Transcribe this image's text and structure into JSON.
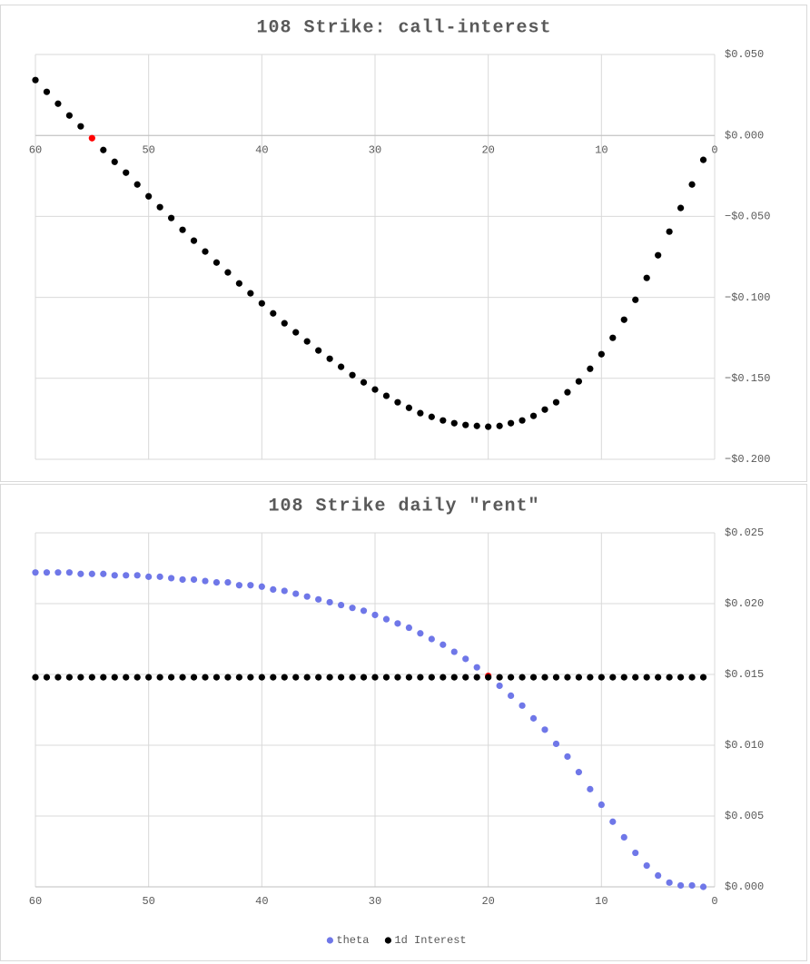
{
  "chart_data": [
    {
      "type": "scatter",
      "title": "108 Strike: call-interest",
      "x": [
        60,
        59,
        58,
        57,
        56,
        55,
        54,
        53,
        52,
        51,
        50,
        49,
        48,
        47,
        46,
        45,
        44,
        43,
        42,
        41,
        40,
        39,
        38,
        37,
        36,
        35,
        34,
        33,
        32,
        31,
        30,
        29,
        28,
        27,
        26,
        25,
        24,
        23,
        22,
        21,
        20,
        19,
        18,
        17,
        16,
        15,
        14,
        13,
        12,
        11,
        10,
        9,
        8,
        7,
        6,
        5,
        4,
        3,
        2,
        1
      ],
      "series": [
        {
          "color": "#000000",
          "highlight": {
            "index": 5,
            "color": "#ff0000"
          },
          "values": [
            0.0342,
            0.0269,
            0.0196,
            0.0123,
            0.0056,
            -0.0017,
            -0.009,
            -0.0163,
            -0.023,
            -0.0303,
            -0.0376,
            -0.0443,
            -0.051,
            -0.0583,
            -0.065,
            -0.0717,
            -0.0785,
            -0.0846,
            -0.0914,
            -0.0975,
            -0.1037,
            -0.1099,
            -0.116,
            -0.1216,
            -0.1272,
            -0.1328,
            -0.1379,
            -0.1429,
            -0.148,
            -0.1525,
            -0.1569,
            -0.1608,
            -0.1648,
            -0.1682,
            -0.1715,
            -0.1738,
            -0.176,
            -0.1777,
            -0.1788,
            -0.1794,
            -0.1799,
            -0.1794,
            -0.1777,
            -0.176,
            -0.1732,
            -0.1693,
            -0.1648,
            -0.1586,
            -0.1519,
            -0.1441,
            -0.1351,
            -0.125,
            -0.1138,
            -0.1015,
            -0.088,
            -0.074,
            -0.0594,
            -0.0448,
            -0.0303,
            -0.0151
          ]
        }
      ],
      "xlim": [
        60,
        0
      ],
      "xticks": [
        60,
        50,
        40,
        30,
        20,
        10,
        0
      ],
      "ylim": [
        -0.2,
        0.05
      ],
      "yticks": [
        {
          "value": 0.05,
          "label": "$0.050"
        },
        {
          "value": 0,
          "label": "$0.000"
        },
        {
          "value": -0.05,
          "label": "−$0.050"
        },
        {
          "value": -0.1,
          "label": "−$0.100"
        },
        {
          "value": -0.15,
          "label": "−$0.150"
        },
        {
          "value": -0.2,
          "label": "−$0.200"
        }
      ],
      "grid": true
    },
    {
      "type": "scatter",
      "title": "108 Strike daily \"rent\"",
      "x": [
        60,
        59,
        58,
        57,
        56,
        55,
        54,
        53,
        52,
        51,
        50,
        49,
        48,
        47,
        46,
        45,
        44,
        43,
        42,
        41,
        40,
        39,
        38,
        37,
        36,
        35,
        34,
        33,
        32,
        31,
        30,
        29,
        28,
        27,
        26,
        25,
        24,
        23,
        22,
        21,
        20,
        19,
        18,
        17,
        16,
        15,
        14,
        13,
        12,
        11,
        10,
        9,
        8,
        7,
        6,
        5,
        4,
        3,
        2,
        1
      ],
      "series": [
        {
          "name": "theta",
          "color": "#6f77e8",
          "highlight": {
            "index": 40,
            "color": "#ff0000"
          },
          "values": [
            0.0222,
            0.0222,
            0.0222,
            0.0222,
            0.0221,
            0.0221,
            0.0221,
            0.022,
            0.022,
            0.022,
            0.0219,
            0.0219,
            0.0218,
            0.0217,
            0.0217,
            0.0216,
            0.0215,
            0.0215,
            0.0213,
            0.0213,
            0.0212,
            0.021,
            0.0209,
            0.0207,
            0.0205,
            0.0203,
            0.0201,
            0.0199,
            0.0197,
            0.0195,
            0.0192,
            0.0189,
            0.0186,
            0.0183,
            0.0179,
            0.0175,
            0.0171,
            0.0166,
            0.0161,
            0.0155,
            0.0149,
            0.0142,
            0.0135,
            0.0128,
            0.0119,
            0.0111,
            0.0101,
            0.0092,
            0.0081,
            0.0069,
            0.0058,
            0.0046,
            0.0035,
            0.0024,
            0.0015,
            0.0008,
            0.0003,
            0.0001,
            0.0001,
            0.0
          ]
        },
        {
          "name": "1d Interest",
          "color": "#000000",
          "values": [
            0.0148,
            0.0148,
            0.0148,
            0.0148,
            0.0148,
            0.0148,
            0.0148,
            0.0148,
            0.0148,
            0.0148,
            0.0148,
            0.0148,
            0.0148,
            0.0148,
            0.0148,
            0.0148,
            0.0148,
            0.0148,
            0.0148,
            0.0148,
            0.0148,
            0.0148,
            0.0148,
            0.0148,
            0.0148,
            0.0148,
            0.0148,
            0.0148,
            0.0148,
            0.0148,
            0.0148,
            0.0148,
            0.0148,
            0.0148,
            0.0148,
            0.0148,
            0.0148,
            0.0148,
            0.0148,
            0.0148,
            0.0148,
            0.0148,
            0.0148,
            0.0148,
            0.0148,
            0.0148,
            0.0148,
            0.0148,
            0.0148,
            0.0148,
            0.0148,
            0.0148,
            0.0148,
            0.0148,
            0.0148,
            0.0148,
            0.0148,
            0.0148,
            0.0148,
            0.0148
          ]
        }
      ],
      "xlim": [
        60,
        0
      ],
      "xticks": [
        60,
        50,
        40,
        30,
        20,
        10,
        0
      ],
      "ylim": [
        0,
        0.025
      ],
      "yticks": [
        {
          "value": 0,
          "label": "$0.000"
        },
        {
          "value": 0.005,
          "label": "$0.005"
        },
        {
          "value": 0.01,
          "label": "$0.010"
        },
        {
          "value": 0.015,
          "label": "$0.015"
        },
        {
          "value": 0.02,
          "label": "$0.020"
        },
        {
          "value": 0.025,
          "label": "$0.025"
        }
      ],
      "grid": true,
      "legend": "bottom"
    }
  ]
}
